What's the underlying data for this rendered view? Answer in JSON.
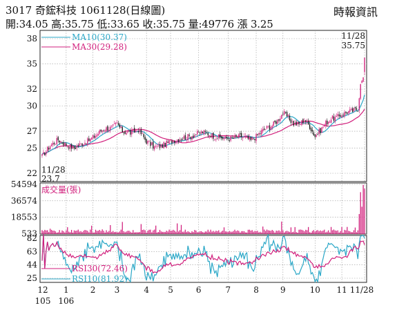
{
  "header": {
    "title": "3017 奇鋐科技 1061128(日線圖)",
    "quote": "開:34.05 高:35.75 低:33.65 收:35.75 量:49776 漲 3.25",
    "source": "時報資訊"
  },
  "colors": {
    "up": "#d11f7c",
    "down": "#1a1a1a",
    "ma10": "#2aa7c7",
    "ma30": "#d11f7c",
    "volume": "#d11f7c",
    "rsi30": "#d11f7c",
    "rsi10": "#2aa7c7",
    "grid": "#9a9a9a"
  },
  "chart_data": [
    {
      "type": "candlestick",
      "panel": "price",
      "ylim": [
        22,
        38
      ],
      "y_ticks": [
        "38",
        "35",
        "32",
        "30",
        "27",
        "25",
        "22"
      ],
      "y_tick_values": [
        38,
        35,
        32,
        30,
        27,
        25,
        22
      ],
      "grid": true,
      "x_tick_labels": [
        {
          "label": "12",
          "sub": "105"
        },
        {
          "label": "1",
          "sub": "106"
        },
        {
          "label": "2"
        },
        {
          "label": "3"
        },
        {
          "label": "4"
        },
        {
          "label": "5"
        },
        {
          "label": "6"
        },
        {
          "label": "7"
        },
        {
          "label": "8"
        },
        {
          "label": "9"
        },
        {
          "label": "10"
        },
        {
          "label": "11"
        },
        {
          "label": "11/28"
        }
      ],
      "x_tick_index": [
        0,
        18,
        38,
        56,
        78,
        96,
        117,
        139,
        160,
        180,
        204,
        224,
        241
      ],
      "n_days": 242,
      "anchors": [
        [
          0,
          24.0
        ],
        [
          6,
          25.3
        ],
        [
          12,
          26.0
        ],
        [
          18,
          25.4
        ],
        [
          24,
          25.0
        ],
        [
          30,
          25.6
        ],
        [
          34,
          25.8
        ],
        [
          40,
          26.5
        ],
        [
          46,
          27.3
        ],
        [
          52,
          27.4
        ],
        [
          56,
          27.9
        ],
        [
          60,
          27.0
        ],
        [
          66,
          26.8
        ],
        [
          72,
          27.2
        ],
        [
          78,
          25.8
        ],
        [
          84,
          25.1
        ],
        [
          90,
          25.3
        ],
        [
          96,
          25.8
        ],
        [
          102,
          26.1
        ],
        [
          108,
          26.3
        ],
        [
          114,
          26.6
        ],
        [
          120,
          26.9
        ],
        [
          126,
          26.6
        ],
        [
          130,
          26.3
        ],
        [
          136,
          26.2
        ],
        [
          142,
          26.1
        ],
        [
          148,
          26.4
        ],
        [
          152,
          26.3
        ],
        [
          156,
          25.9
        ],
        [
          160,
          26.4
        ],
        [
          164,
          27.0
        ],
        [
          168,
          27.4
        ],
        [
          172,
          27.7
        ],
        [
          176,
          28.3
        ],
        [
          180,
          29.2
        ],
        [
          184,
          28.6
        ],
        [
          188,
          27.9
        ],
        [
          192,
          27.8
        ],
        [
          196,
          28.4
        ],
        [
          200,
          27.6
        ],
        [
          204,
          26.4
        ],
        [
          208,
          27.1
        ],
        [
          212,
          28.0
        ],
        [
          216,
          28.5
        ],
        [
          220,
          28.6
        ],
        [
          224,
          29.0
        ],
        [
          228,
          29.3
        ],
        [
          232,
          29.4
        ],
        [
          236,
          29.7
        ],
        [
          238,
          32.6
        ],
        [
          240,
          33.4
        ],
        [
          241,
          35.75
        ]
      ],
      "annotations": {
        "last_date": "11/28",
        "last_close": "35.75",
        "low_date": "11/28",
        "low_value": "23.7"
      },
      "series": [
        {
          "name": "MA10",
          "label": "MA10(30.37)",
          "value": 30.37
        },
        {
          "name": "MA30",
          "label": "MA30(29.28)",
          "value": 29.28
        }
      ]
    },
    {
      "type": "bar",
      "panel": "volume",
      "title": "成交量(張)",
      "ylim": [
        0,
        54594
      ],
      "y_ticks": [
        "54594",
        "36574",
        "18553",
        "533"
      ],
      "y_tick_values": [
        54594,
        36574,
        18553,
        533
      ],
      "last_value": 49776
    },
    {
      "type": "line",
      "panel": "rsi",
      "ylim": [
        25,
        82
      ],
      "y_ticks": [
        "82",
        "63",
        "44",
        "25"
      ],
      "y_tick_values": [
        82,
        63,
        44,
        25
      ],
      "series": [
        {
          "name": "RSI30",
          "label": "RSI30(72.46)",
          "value": 72.46
        },
        {
          "name": "RSI10",
          "label": "RSI10(81.92)",
          "value": 81.92
        }
      ]
    }
  ]
}
